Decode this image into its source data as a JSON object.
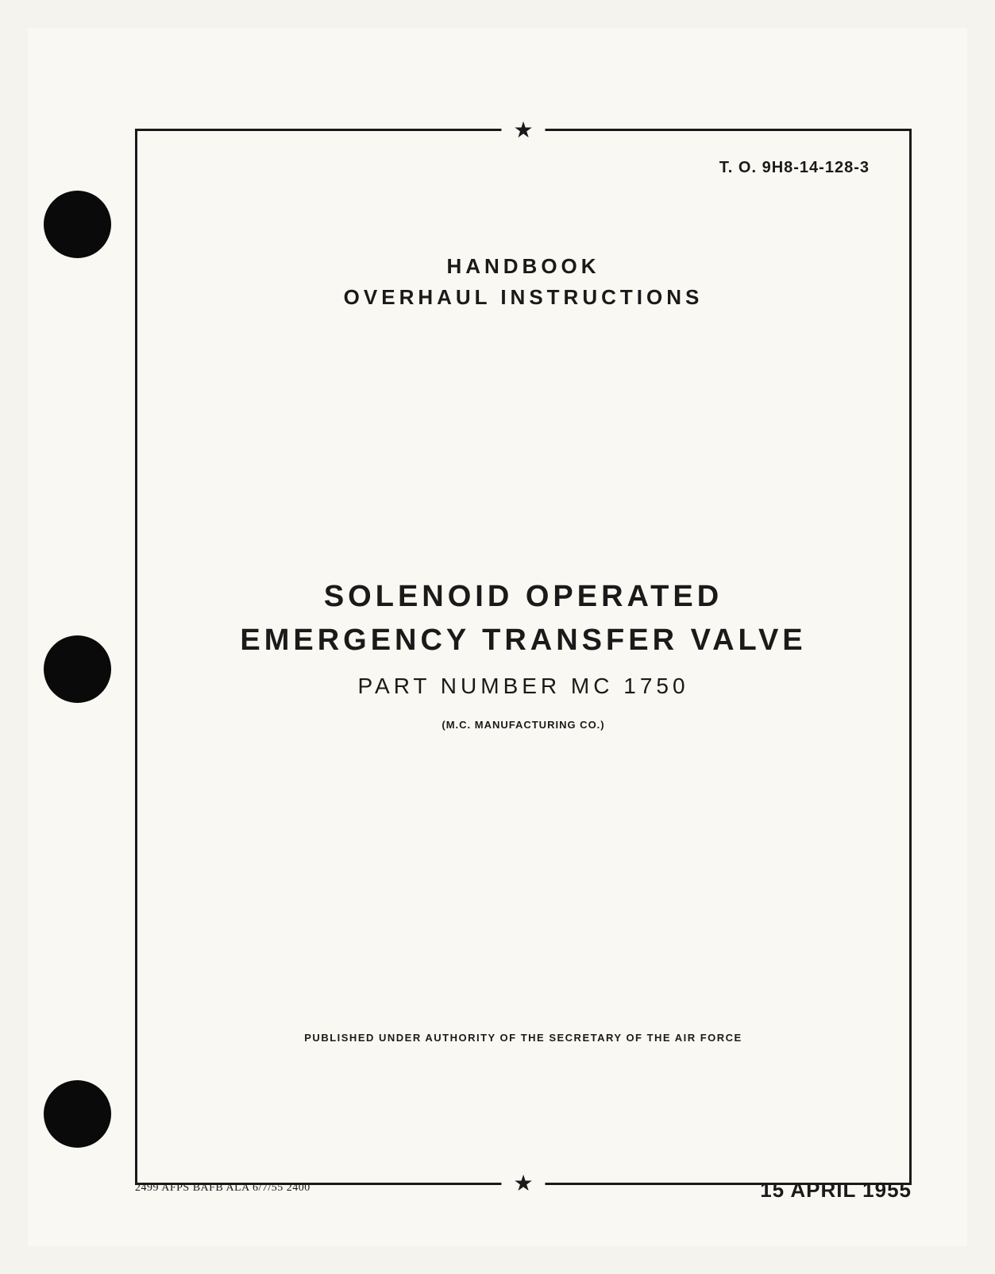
{
  "document": {
    "doc_number": "T. O. 9H8-14-128-3",
    "header_line1": "HANDBOOK",
    "header_line2": "OVERHAUL INSTRUCTIONS",
    "title_line1": "SOLENOID OPERATED",
    "title_line2": "EMERGENCY TRANSFER VALVE",
    "part_number": "PART NUMBER MC 1750",
    "manufacturer": "(M.C. MANUFACTURING CO.)",
    "authority": "PUBLISHED UNDER AUTHORITY OF THE SECRETARY OF THE AIR FORCE",
    "footer_left": "2499  AFPS BAFB ALA  6/7/55  2400",
    "footer_right": "15 APRIL 1955",
    "star_glyph": "★"
  },
  "styling": {
    "page_bg": "#faf8f2",
    "body_bg": "#f5f3ed",
    "text_color": "#1a1a1a",
    "hole_color": "#0a0a0a",
    "border_width": 3,
    "title_fontsize": 38,
    "header_fontsize": 26,
    "partnum_fontsize": 28,
    "docnum_fontsize": 20,
    "footer_date_fontsize": 26,
    "small_text_fontsize": 13
  }
}
